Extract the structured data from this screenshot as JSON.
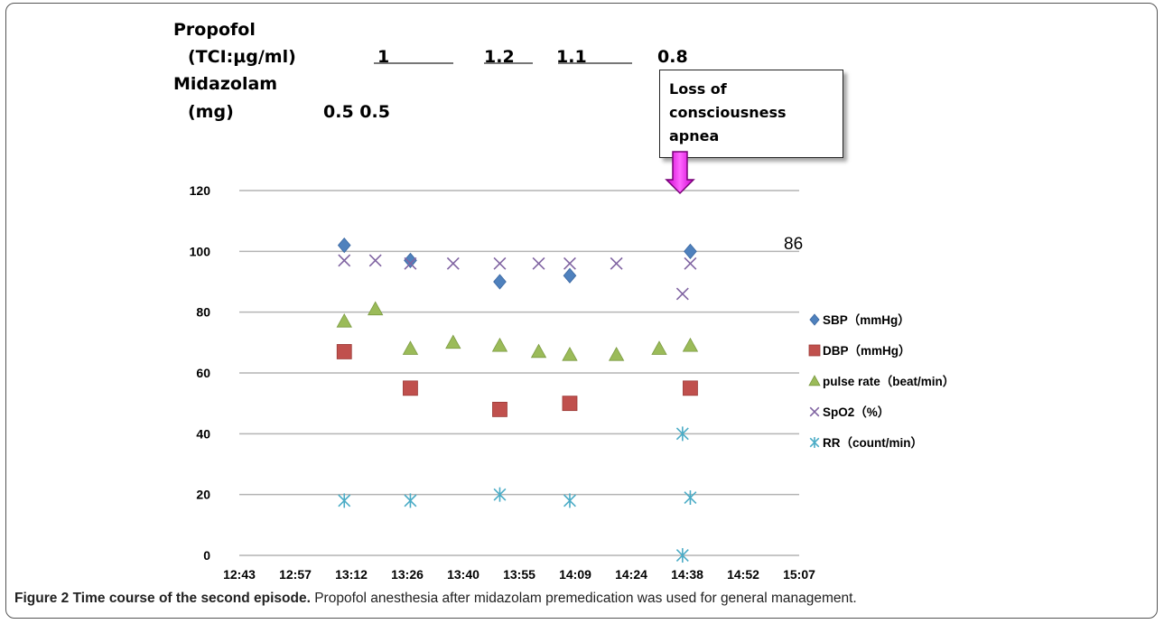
{
  "header": {
    "propofol_line1": "Propofol",
    "propofol_line2": "(TCI:µg/ml)",
    "midazolam_line1": "Midazolam",
    "midazolam_line2": "(mg)",
    "propofol_doses": [
      "1",
      "1.2",
      "1.1",
      "0.8"
    ],
    "midazolam_doses": "0.5 0.5"
  },
  "annotation": {
    "text": "Loss of\nconsciousness\napnea",
    "arrow_color": "#ff33ff"
  },
  "spo2_callout": "86",
  "caption": {
    "label": "Figure 2",
    "title": "Time course of the second episode.",
    "text": "Propofol anesthesia after midazolam premedication was used for general management."
  },
  "chart_data": {
    "type": "scatter",
    "title": "",
    "xlabel": "",
    "ylabel": "",
    "x_ticks": [
      "12:43",
      "12:57",
      "13:12",
      "13:26",
      "13:40",
      "13:55",
      "14:09",
      "14:24",
      "14:38",
      "14:52",
      "15:07"
    ],
    "xlim": [
      "12:43",
      "15:07"
    ],
    "ylim": [
      0,
      120
    ],
    "y_ticks": [
      0,
      20,
      40,
      60,
      80,
      100,
      120
    ],
    "grid": "horizontal",
    "legend_position": "right",
    "series": [
      {
        "name": "SBP（mmHg）",
        "marker": "diamond",
        "color": "#4f81bd",
        "points": [
          [
            "13:10",
            102
          ],
          [
            "13:27",
            97
          ],
          [
            "13:50",
            90
          ],
          [
            "14:08",
            92
          ],
          [
            "14:39",
            100
          ]
        ]
      },
      {
        "name": "DBP（mmHg）",
        "marker": "square",
        "color": "#c0504d",
        "points": [
          [
            "13:10",
            67
          ],
          [
            "13:27",
            55
          ],
          [
            "13:50",
            48
          ],
          [
            "14:08",
            50
          ],
          [
            "14:39",
            55
          ]
        ]
      },
      {
        "name": "pulse rate（beat/min）",
        "marker": "triangle",
        "color": "#9bbb59",
        "points": [
          [
            "13:10",
            77
          ],
          [
            "13:18",
            81
          ],
          [
            "13:27",
            68
          ],
          [
            "13:38",
            70
          ],
          [
            "13:50",
            69
          ],
          [
            "14:00",
            67
          ],
          [
            "14:08",
            66
          ],
          [
            "14:20",
            66
          ],
          [
            "14:31",
            68
          ],
          [
            "14:39",
            69
          ]
        ]
      },
      {
        "name": "SpO2（%）",
        "marker": "x",
        "color": "#8064a2",
        "points": [
          [
            "13:10",
            97
          ],
          [
            "13:18",
            97
          ],
          [
            "13:27",
            96
          ],
          [
            "13:38",
            96
          ],
          [
            "13:50",
            96
          ],
          [
            "14:00",
            96
          ],
          [
            "14:08",
            96
          ],
          [
            "14:20",
            96
          ],
          [
            "14:37",
            86
          ],
          [
            "14:39",
            96
          ]
        ]
      },
      {
        "name": "RR（count/min）",
        "marker": "star",
        "color": "#4bacc6",
        "points": [
          [
            "13:10",
            18
          ],
          [
            "13:27",
            18
          ],
          [
            "13:50",
            20
          ],
          [
            "14:08",
            18
          ],
          [
            "14:37",
            40
          ],
          [
            "14:37",
            0
          ],
          [
            "14:39",
            19
          ]
        ]
      }
    ]
  }
}
